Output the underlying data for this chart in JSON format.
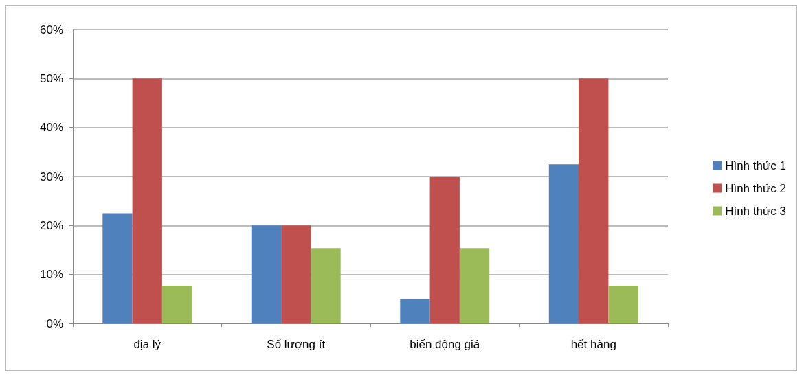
{
  "chart_data": {
    "type": "bar",
    "categories": [
      "địa lý",
      "Số lượng ít",
      "biến động giá",
      "hết hàng"
    ],
    "series": [
      {
        "name": "Hình thức 1",
        "color": "#4f81bd",
        "values": [
          22.5,
          20,
          5,
          32.5
        ]
      },
      {
        "name": "Hình thức 2",
        "color": "#c0504d",
        "values": [
          50,
          20,
          30,
          50
        ]
      },
      {
        "name": "Hình thức 3",
        "color": "#9bbb59",
        "values": [
          7.7,
          15.4,
          15.4,
          7.7
        ]
      }
    ],
    "ylim": [
      0,
      60
    ],
    "yticks": [
      {
        "value": 0,
        "label": "0%"
      },
      {
        "value": 10,
        "label": "10%"
      },
      {
        "value": 20,
        "label": "20%"
      },
      {
        "value": 30,
        "label": "30%"
      },
      {
        "value": 40,
        "label": "40%"
      },
      {
        "value": 50,
        "label": "50%"
      },
      {
        "value": 60,
        "label": "60%"
      }
    ],
    "grid": true,
    "legend": "right"
  }
}
